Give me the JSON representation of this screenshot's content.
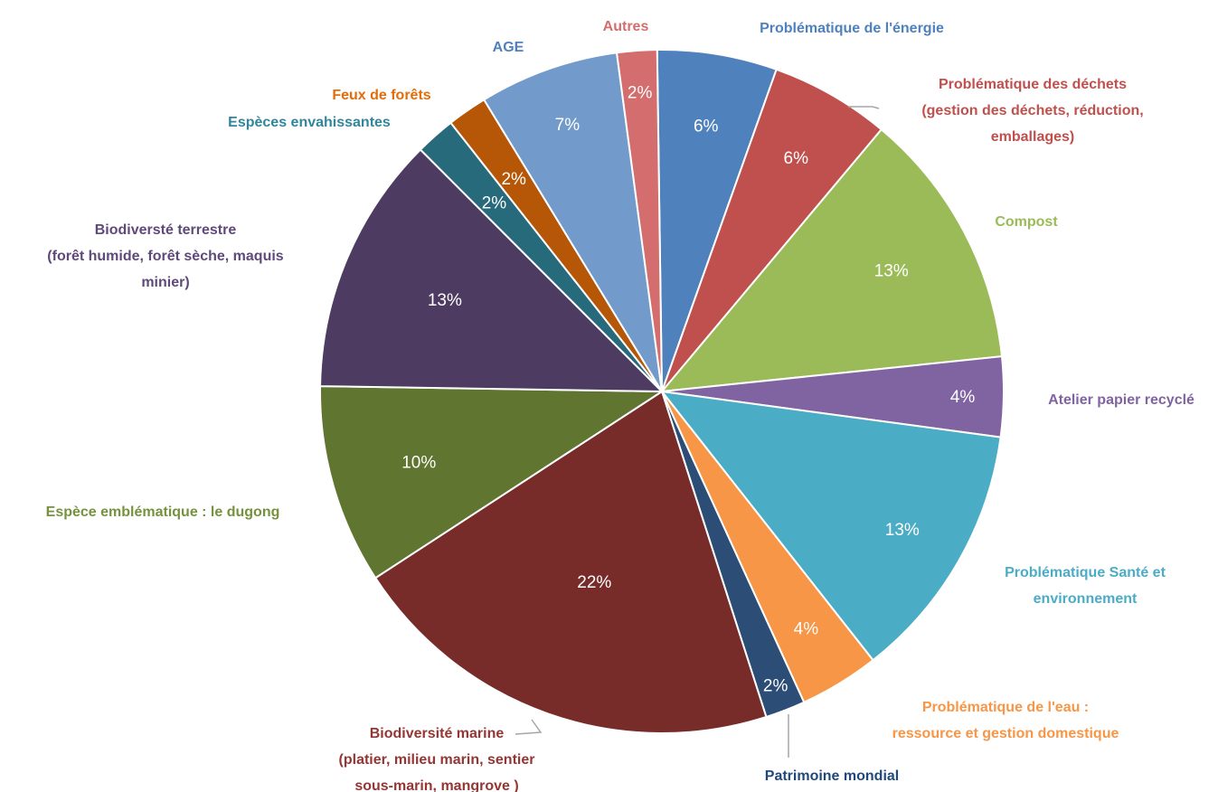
{
  "chart_data": {
    "type": "pie",
    "title": "",
    "slices": [
      {
        "name": "Problématique de l'énergie",
        "label_lines": [
          "Problématique de l'énergie"
        ],
        "value": 6,
        "pct_label": "6%",
        "color": "#4F81BD"
      },
      {
        "name": "Problématique des déchets (gestion des déchets, réduction, emballages)",
        "label_lines": [
          "Problématique des déchets",
          "(gestion des déchets, réduction,",
          "emballages)"
        ],
        "value": 6,
        "pct_label": "6%",
        "color": "#C0504D"
      },
      {
        "name": "Compost",
        "label_lines": [
          "Compost"
        ],
        "value": 13,
        "pct_label": "13%",
        "color": "#9BBB59"
      },
      {
        "name": "Atelier papier recyclé",
        "label_lines": [
          "Atelier papier recyclé"
        ],
        "value": 4,
        "pct_label": "4%",
        "color": "#8064A2"
      },
      {
        "name": "Problématique Santé et environnement",
        "label_lines": [
          "Problématique Santé et",
          "environnement"
        ],
        "value": 13,
        "pct_label": "13%",
        "color": "#4BACC6"
      },
      {
        "name": "Problématique de l'eau : ressource et gestion domestique",
        "label_lines": [
          "Problématique de l'eau :",
          "ressource et gestion domestique"
        ],
        "value": 4,
        "pct_label": "4%",
        "color": "#F79646"
      },
      {
        "name": "Patrimoine mondial",
        "label_lines": [
          "Patrimoine mondial"
        ],
        "value": 2,
        "pct_label": "2%",
        "color": "#2C4D75"
      },
      {
        "name": "Biodiversité marine (platier, milieu marin, sentier sous-marin, mangrove )",
        "label_lines": [
          "Biodiversité marine",
          "(platier, milieu marin, sentier",
          "sous-marin, mangrove )"
        ],
        "value": 22,
        "pct_label": "22%",
        "color": "#772C2A"
      },
      {
        "name": "Espèce emblématique : le dugong",
        "label_lines": [
          "Espèce emblématique : le dugong"
        ],
        "value": 10,
        "pct_label": "10%",
        "color": "#5F7530"
      },
      {
        "name": "Biodiversté terrestre (forêt humide, forêt sèche, maquis minier)",
        "label_lines": [
          "Biodiversté terrestre",
          "(forêt humide, forêt sèche, maquis",
          "minier)"
        ],
        "value": 13,
        "pct_label": "13%",
        "color": "#4D3B62"
      },
      {
        "name": "Espèces envahissantes",
        "label_lines": [
          "Espèces envahissantes"
        ],
        "value": 2,
        "pct_label": "2%",
        "color": "#276A7C"
      },
      {
        "name": "Feux de forêts",
        "label_lines": [
          "Feux de forêts"
        ],
        "value": 2,
        "pct_label": "2%",
        "color": "#B65708"
      },
      {
        "name": "AGE",
        "label_lines": [
          "AGE"
        ],
        "value": 7,
        "pct_label": "7%",
        "color": "#729ACA"
      },
      {
        "name": "Autres",
        "label_lines": [
          "Autres"
        ],
        "value": 2,
        "pct_label": "2%",
        "color": "#D46D6D"
      }
    ],
    "legend": "none",
    "labels": "outside with leader lines"
  },
  "colors": {
    "background": "#ffffff",
    "slice_border": "#ffffff",
    "leader_line": "#a6a6a6"
  }
}
